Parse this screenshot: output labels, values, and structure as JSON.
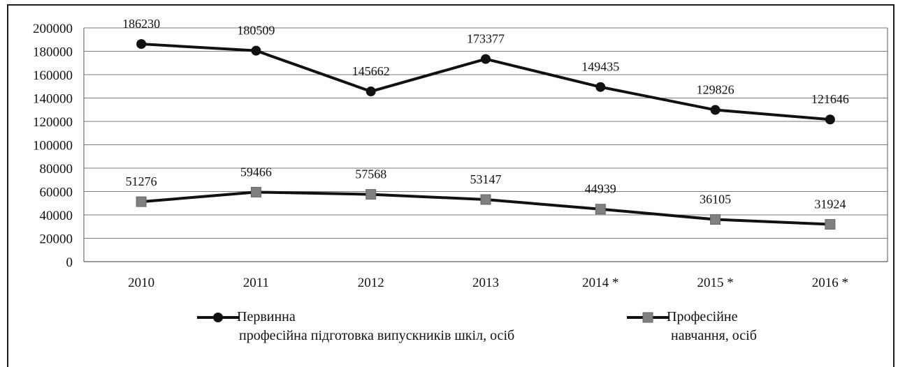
{
  "chart_data": {
    "type": "line",
    "categories": [
      "2010",
      "2011",
      "2012",
      "2013",
      "2014 *",
      "2015 *",
      "2016 *"
    ],
    "ylim": [
      0,
      200000
    ],
    "yticks": [
      0,
      20000,
      40000,
      60000,
      80000,
      100000,
      120000,
      140000,
      160000,
      180000,
      200000
    ],
    "grid": true,
    "legend_position": "bottom",
    "series": [
      {
        "name_line1": "Первинна",
        "name_line2": "професійна підготовка випускників шкіл, осіб",
        "marker": "circle",
        "color": "#111111",
        "values": [
          186230,
          180509,
          145662,
          173377,
          149435,
          129826,
          121646
        ]
      },
      {
        "name_line1": "Професійне",
        "name_line2": "навчання, осіб",
        "marker": "square",
        "color": "#111111",
        "marker_color": "#808080",
        "values": [
          51276,
          59466,
          57568,
          53147,
          44939,
          36105,
          31924
        ]
      }
    ]
  }
}
